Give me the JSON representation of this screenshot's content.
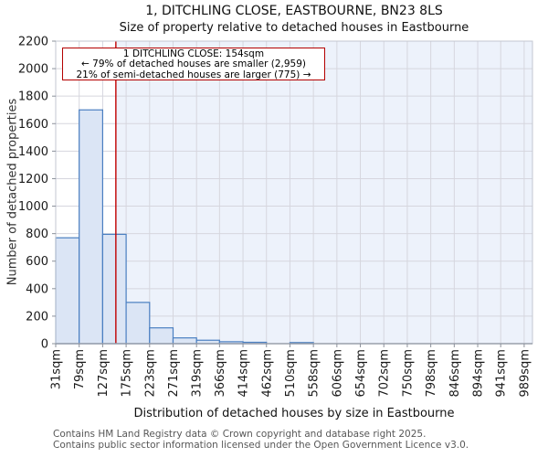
{
  "title": "1, DITCHLING CLOSE, EASTBOURNE, BN23 8LS",
  "subtitle": "Size of property relative to detached houses in Eastbourne",
  "annotation": {
    "line1": "1 DITCHLING CLOSE: 154sqm",
    "line2": "← 79% of detached houses are smaller (2,959)",
    "line3": "21% of semi-detached houses are larger (775) →"
  },
  "footer": {
    "line1": "Contains HM Land Registry data © Crown copyright and database right 2025.",
    "line2": "Contains public sector information licensed under the Open Government Licence v3.0."
  },
  "chart_data": {
    "type": "bar",
    "title": "1, DITCHLING CLOSE, EASTBOURNE, BN23 8LS — Size of property relative to detached houses in Eastbourne",
    "xlabel": "Distribution of detached houses by size in Eastbourne",
    "ylabel": "Number of detached properties",
    "bin_edges_sqm": [
      31,
      79,
      127,
      175,
      223,
      271,
      319,
      366,
      414,
      462,
      510,
      558,
      606,
      654,
      702,
      750,
      798,
      846,
      894,
      941,
      989
    ],
    "tick_labels": [
      "31sqm",
      "79sqm",
      "127sqm",
      "175sqm",
      "223sqm",
      "271sqm",
      "319sqm",
      "366sqm",
      "414sqm",
      "462sqm",
      "510sqm",
      "558sqm",
      "606sqm",
      "654sqm",
      "702sqm",
      "750sqm",
      "798sqm",
      "846sqm",
      "894sqm",
      "941sqm",
      "989sqm"
    ],
    "values": [
      770,
      1700,
      795,
      300,
      115,
      42,
      25,
      14,
      10,
      0,
      8,
      0,
      0,
      0,
      0,
      0,
      0,
      0,
      0,
      0
    ],
    "marker_value_sqm": 154,
    "ylim": [
      0,
      2200
    ],
    "ytick_step": 200,
    "xlim": [
      31,
      1006
    ],
    "grid": true,
    "legend": "none",
    "colors": {
      "bar_fill": "#dbe5f5",
      "bar_edge": "#4a7fc1",
      "marker": "#c00000",
      "grid": "#d6d6de",
      "region_right_of_marker": "#edf2fb",
      "annotation_border": "#b40000"
    }
  }
}
